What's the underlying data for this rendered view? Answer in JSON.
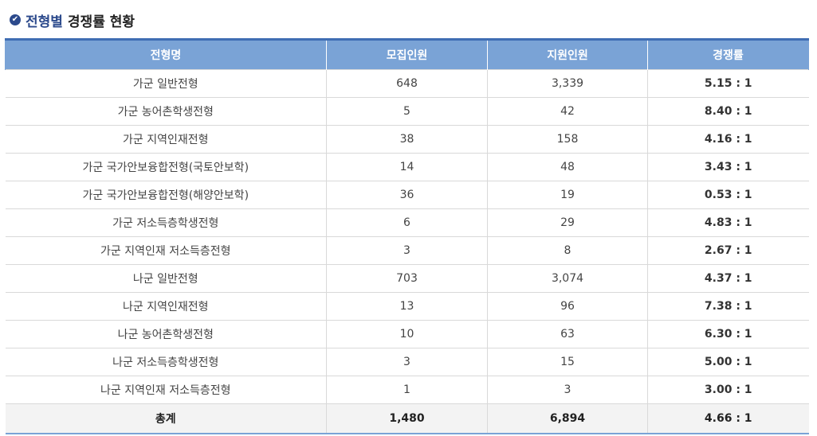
{
  "section": {
    "title_accent": "전형별",
    "title_rest": "경쟁률 현황",
    "icon": "check-circle-icon"
  },
  "table": {
    "headers": [
      "전형명",
      "모집인원",
      "지원인원",
      "경쟁률"
    ],
    "rows": [
      {
        "name": "가군 일반전형",
        "quota": "648",
        "applicants": "3,339",
        "ratio": "5.15 : 1"
      },
      {
        "name": "가군 농어촌학생전형",
        "quota": "5",
        "applicants": "42",
        "ratio": "8.40 : 1"
      },
      {
        "name": "가군 지역인재전형",
        "quota": "38",
        "applicants": "158",
        "ratio": "4.16 : 1"
      },
      {
        "name": "가군 국가안보융합전형(국토안보학)",
        "quota": "14",
        "applicants": "48",
        "ratio": "3.43 : 1"
      },
      {
        "name": "가군 국가안보융합전형(해양안보학)",
        "quota": "36",
        "applicants": "19",
        "ratio": "0.53 : 1"
      },
      {
        "name": "가군 저소득층학생전형",
        "quota": "6",
        "applicants": "29",
        "ratio": "4.83 : 1"
      },
      {
        "name": "가군 지역인재 저소득층전형",
        "quota": "3",
        "applicants": "8",
        "ratio": "2.67 : 1"
      },
      {
        "name": "나군 일반전형",
        "quota": "703",
        "applicants": "3,074",
        "ratio": "4.37 : 1"
      },
      {
        "name": "나군 지역인재전형",
        "quota": "13",
        "applicants": "96",
        "ratio": "7.38 : 1"
      },
      {
        "name": "나군 농어촌학생전형",
        "quota": "10",
        "applicants": "63",
        "ratio": "6.30 : 1"
      },
      {
        "name": "나군 저소득층학생전형",
        "quota": "3",
        "applicants": "15",
        "ratio": "5.00 : 1"
      },
      {
        "name": "나군 지역인재 저소득층전형",
        "quota": "1",
        "applicants": "3",
        "ratio": "3.00 : 1"
      }
    ],
    "total": {
      "name": "총계",
      "quota": "1,480",
      "applicants": "6,894",
      "ratio": "4.66 : 1"
    }
  },
  "colors": {
    "header_bg": "#7aa3d6",
    "accent": "#2c4a8c",
    "header_border": "#3f6db3"
  }
}
